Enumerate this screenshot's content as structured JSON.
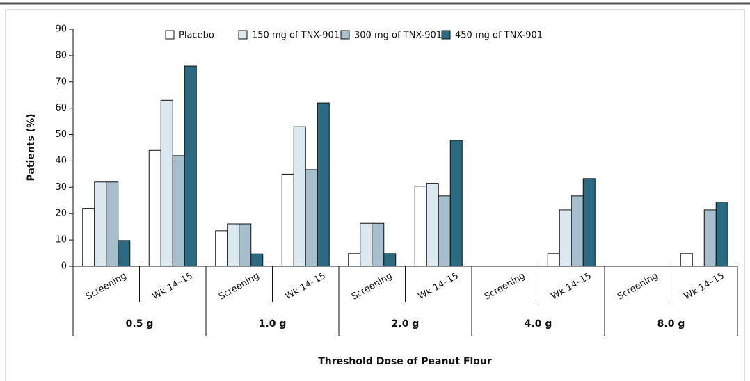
{
  "chart_data": {
    "type": "bar",
    "ylabel": "Patients (%)",
    "xlabel": "Threshold Dose of Peanut Flour",
    "categories": [
      "Screening",
      "Wk 14–15",
      "Screening",
      "Wk 14–15",
      "Screening",
      "Wk 14–15",
      "Screening",
      "Wk 14–15",
      "Screening",
      "Wk 14–15"
    ],
    "groups": [
      "0.5 g",
      "1.0 g",
      "2.0 g",
      "4.0 g",
      "8.0 g"
    ],
    "series": [
      {
        "name": "Placebo",
        "color": "#ffffff",
        "values": [
          22,
          44,
          13.5,
          35,
          4.8,
          30.4,
          0,
          4.8,
          0,
          4.8
        ]
      },
      {
        "name": "150 mg of TNX-901",
        "color": "#dce8f0",
        "values": [
          32,
          63,
          16.1,
          53,
          16.3,
          31.5,
          0,
          21.4,
          0,
          0
        ]
      },
      {
        "name": "300 mg of TNX-901",
        "color": "#a7bfcc",
        "values": [
          32,
          42,
          16.1,
          36.7,
          16.3,
          26.7,
          0,
          26.7,
          0,
          21.4
        ]
      },
      {
        "name": "450 mg of TNX-901",
        "color": "#2c6a82",
        "values": [
          9.8,
          76,
          4.7,
          62,
          4.8,
          47.8,
          0,
          33.3,
          0,
          24.4
        ]
      }
    ],
    "ylim": [
      0,
      90
    ],
    "yticks": [
      0,
      10,
      20,
      30,
      40,
      50,
      60,
      70,
      80,
      90
    ]
  }
}
